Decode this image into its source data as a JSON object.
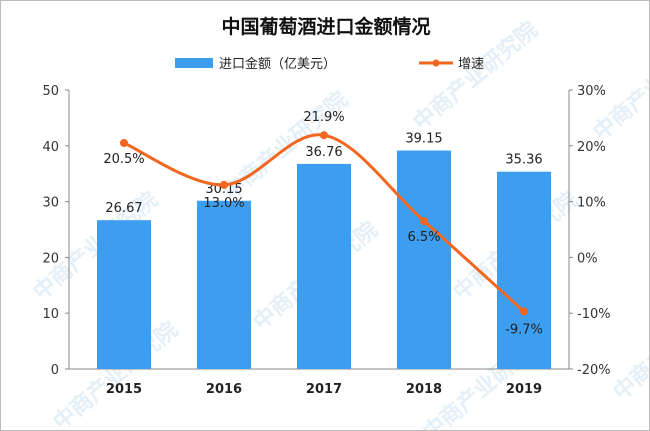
{
  "chart_data": {
    "type": "bar+line",
    "title": "中国葡萄酒进口金额情况",
    "categories": [
      "2015",
      "2016",
      "2017",
      "2018",
      "2019"
    ],
    "series": [
      {
        "name": "进口金额（亿美元）",
        "type": "bar",
        "axis": "left",
        "values": [
          26.67,
          30.15,
          36.76,
          39.15,
          35.36
        ],
        "labels": [
          "26.67",
          "30.15",
          "36.76",
          "39.15",
          "35.36"
        ],
        "color": "#3d9ef0"
      },
      {
        "name": "增速",
        "type": "line",
        "axis": "right",
        "values": [
          20.5,
          13.0,
          21.9,
          6.5,
          -9.7
        ],
        "labels": [
          "20.5%",
          "13.0%",
          "21.9%",
          "6.5%",
          "-9.7%"
        ],
        "color": "#f2661f"
      }
    ],
    "left_axis": {
      "ylim": [
        0,
        50
      ],
      "ticks": [
        "0",
        "10",
        "20",
        "30",
        "40",
        "50"
      ]
    },
    "right_axis": {
      "ylim": [
        -20,
        30
      ],
      "ticks": [
        "-20%",
        "-10%",
        "0%",
        "10%",
        "20%",
        "30%"
      ]
    },
    "legend": "top",
    "grid": false
  },
  "watermark": "中商产业研究院"
}
